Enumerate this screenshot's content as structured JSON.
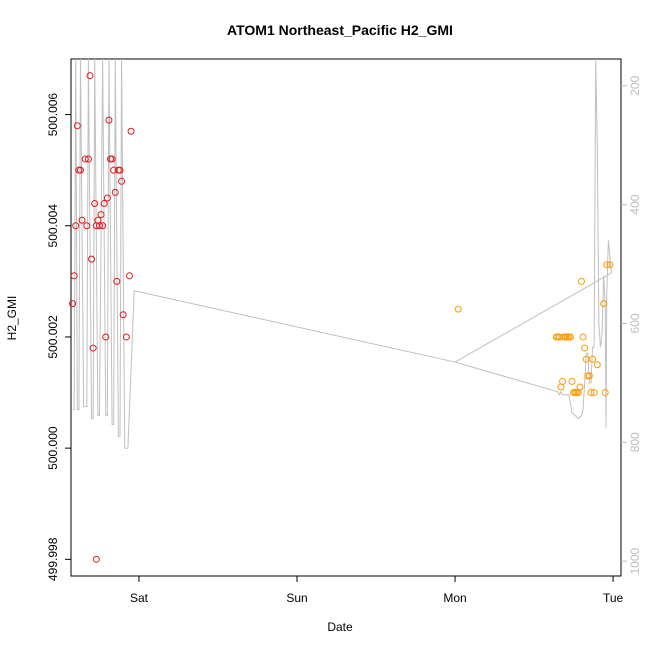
{
  "chart_data": {
    "type": "scatter",
    "title": "ATOM1 Northeast_Pacific H2_GMI",
    "xlabel": "Date",
    "ylabel": "H2_GMI",
    "x_ticks": [
      "Sat",
      "Sun",
      "Mon",
      "Tue"
    ],
    "x_tick_values": [
      1.0,
      2.0,
      3.0,
      4.0
    ],
    "xlim": [
      0.57,
      4.05
    ],
    "ylim": [
      499.9977,
      500.007
    ],
    "y_ticks": [
      499.998,
      500.0,
      500.002,
      500.004,
      500.006
    ],
    "y_tick_labels": [
      "499.998",
      "500.000",
      "500.002",
      "500.004",
      "500.006"
    ],
    "y2lim": [
      1025,
      155
    ],
    "y2_ticks": [
      200,
      400,
      600,
      800,
      1000
    ],
    "y2_tick_labels": [
      "200",
      "400",
      "600",
      "800",
      "1000"
    ],
    "colors": {
      "series1": "#e31a1c",
      "series2": "#ff9900",
      "pressure": "#c0c0c0",
      "axis": "#000000",
      "axis_right": "#bdbdbd"
    },
    "series": [
      {
        "color": "#e31a1c",
        "points": [
          [
            0.58,
            500.0026
          ],
          [
            0.59,
            500.0031
          ],
          [
            0.6,
            500.004
          ],
          [
            0.61,
            500.0058
          ],
          [
            0.62,
            500.005
          ],
          [
            0.63,
            500.005
          ],
          [
            0.64,
            500.0041
          ],
          [
            0.66,
            500.0052
          ],
          [
            0.67,
            500.004
          ],
          [
            0.68,
            500.0052
          ],
          [
            0.69,
            500.0067
          ],
          [
            0.7,
            500.0034
          ],
          [
            0.71,
            500.0018
          ],
          [
            0.72,
            500.0044
          ],
          [
            0.73,
            500.004
          ],
          [
            0.74,
            500.0041
          ],
          [
            0.75,
            500.004
          ],
          [
            0.76,
            500.0042
          ],
          [
            0.77,
            500.004
          ],
          [
            0.78,
            500.0044
          ],
          [
            0.79,
            500.002
          ],
          [
            0.8,
            500.0045
          ],
          [
            0.81,
            500.0059
          ],
          [
            0.82,
            500.0052
          ],
          [
            0.83,
            500.0052
          ],
          [
            0.84,
            500.005
          ],
          [
            0.85,
            500.0046
          ],
          [
            0.86,
            500.003
          ],
          [
            0.87,
            500.005
          ],
          [
            0.88,
            500.005
          ],
          [
            0.89,
            500.0048
          ],
          [
            0.9,
            500.0024
          ],
          [
            0.92,
            500.002
          ],
          [
            0.94,
            500.0031
          ],
          [
            0.95,
            500.0057
          ],
          [
            0.73,
            499.998
          ]
        ]
      },
      {
        "color": "#ff9900",
        "points": [
          [
            3.02,
            500.0025
          ],
          [
            3.64,
            500.002
          ],
          [
            3.65,
            500.002
          ],
          [
            3.66,
            500.002
          ],
          [
            3.67,
            500.0011
          ],
          [
            3.68,
            500.0012
          ],
          [
            3.69,
            500.002
          ],
          [
            3.7,
            500.002
          ],
          [
            3.71,
            500.002
          ],
          [
            3.72,
            500.002
          ],
          [
            3.73,
            500.002
          ],
          [
            3.74,
            500.0012
          ],
          [
            3.75,
            500.001
          ],
          [
            3.76,
            500.001
          ],
          [
            3.77,
            500.001
          ],
          [
            3.78,
            500.001
          ],
          [
            3.79,
            500.0011
          ],
          [
            3.8,
            500.003
          ],
          [
            3.81,
            500.002
          ],
          [
            3.82,
            500.0018
          ],
          [
            3.83,
            500.0016
          ],
          [
            3.84,
            500.0013
          ],
          [
            3.85,
            500.0013
          ],
          [
            3.86,
            500.001
          ],
          [
            3.87,
            500.0016
          ],
          [
            3.88,
            500.001
          ],
          [
            3.9,
            500.0015
          ],
          [
            3.94,
            500.0026
          ],
          [
            3.95,
            500.001
          ],
          [
            3.96,
            500.0033
          ],
          [
            3.98,
            500.0033
          ]
        ]
      }
    ],
    "pressure_line": {
      "color": "#c0c0c0",
      "points": [
        [
          0.58,
          745
        ],
        [
          0.59,
          745
        ],
        [
          0.6,
          155
        ],
        [
          0.61,
          745
        ],
        [
          0.62,
          745
        ],
        [
          0.63,
          155
        ],
        [
          0.65,
          740
        ],
        [
          0.67,
          740
        ],
        [
          0.68,
          155
        ],
        [
          0.7,
          760
        ],
        [
          0.71,
          760
        ],
        [
          0.72,
          155
        ],
        [
          0.74,
          755
        ],
        [
          0.75,
          755
        ],
        [
          0.77,
          155
        ],
        [
          0.79,
          755
        ],
        [
          0.8,
          755
        ],
        [
          0.81,
          155
        ],
        [
          0.83,
          770
        ],
        [
          0.84,
          770
        ],
        [
          0.85,
          155
        ],
        [
          0.87,
          790
        ],
        [
          0.88,
          790
        ],
        [
          0.89,
          155
        ],
        [
          0.91,
          810
        ],
        [
          0.93,
          810
        ],
        [
          0.97,
          545
        ],
        [
          3.0,
          665
        ],
        [
          3.65,
          715
        ],
        [
          3.66,
          720
        ],
        [
          3.67,
          715
        ],
        [
          3.68,
          720
        ],
        [
          3.7,
          720
        ],
        [
          3.72,
          720
        ],
        [
          3.74,
          750
        ],
        [
          3.78,
          760
        ],
        [
          3.8,
          755
        ],
        [
          3.81,
          745
        ],
        [
          3.82,
          700
        ],
        [
          3.83,
          650
        ],
        [
          3.84,
          650
        ],
        [
          3.85,
          700
        ],
        [
          3.86,
          700
        ],
        [
          3.87,
          640
        ],
        [
          3.88,
          640
        ],
        [
          3.89,
          155
        ],
        [
          3.9,
          300
        ],
        [
          3.91,
          600
        ],
        [
          3.92,
          640
        ],
        [
          3.93,
          620
        ],
        [
          3.94,
          520
        ],
        [
          3.95,
          570
        ],
        [
          3.955,
          775
        ],
        [
          3.96,
          550
        ],
        [
          3.97,
          460
        ],
        [
          3.99,
          515
        ],
        [
          3.0,
          665
        ],
        [
          3.99,
          515
        ]
      ]
    }
  }
}
